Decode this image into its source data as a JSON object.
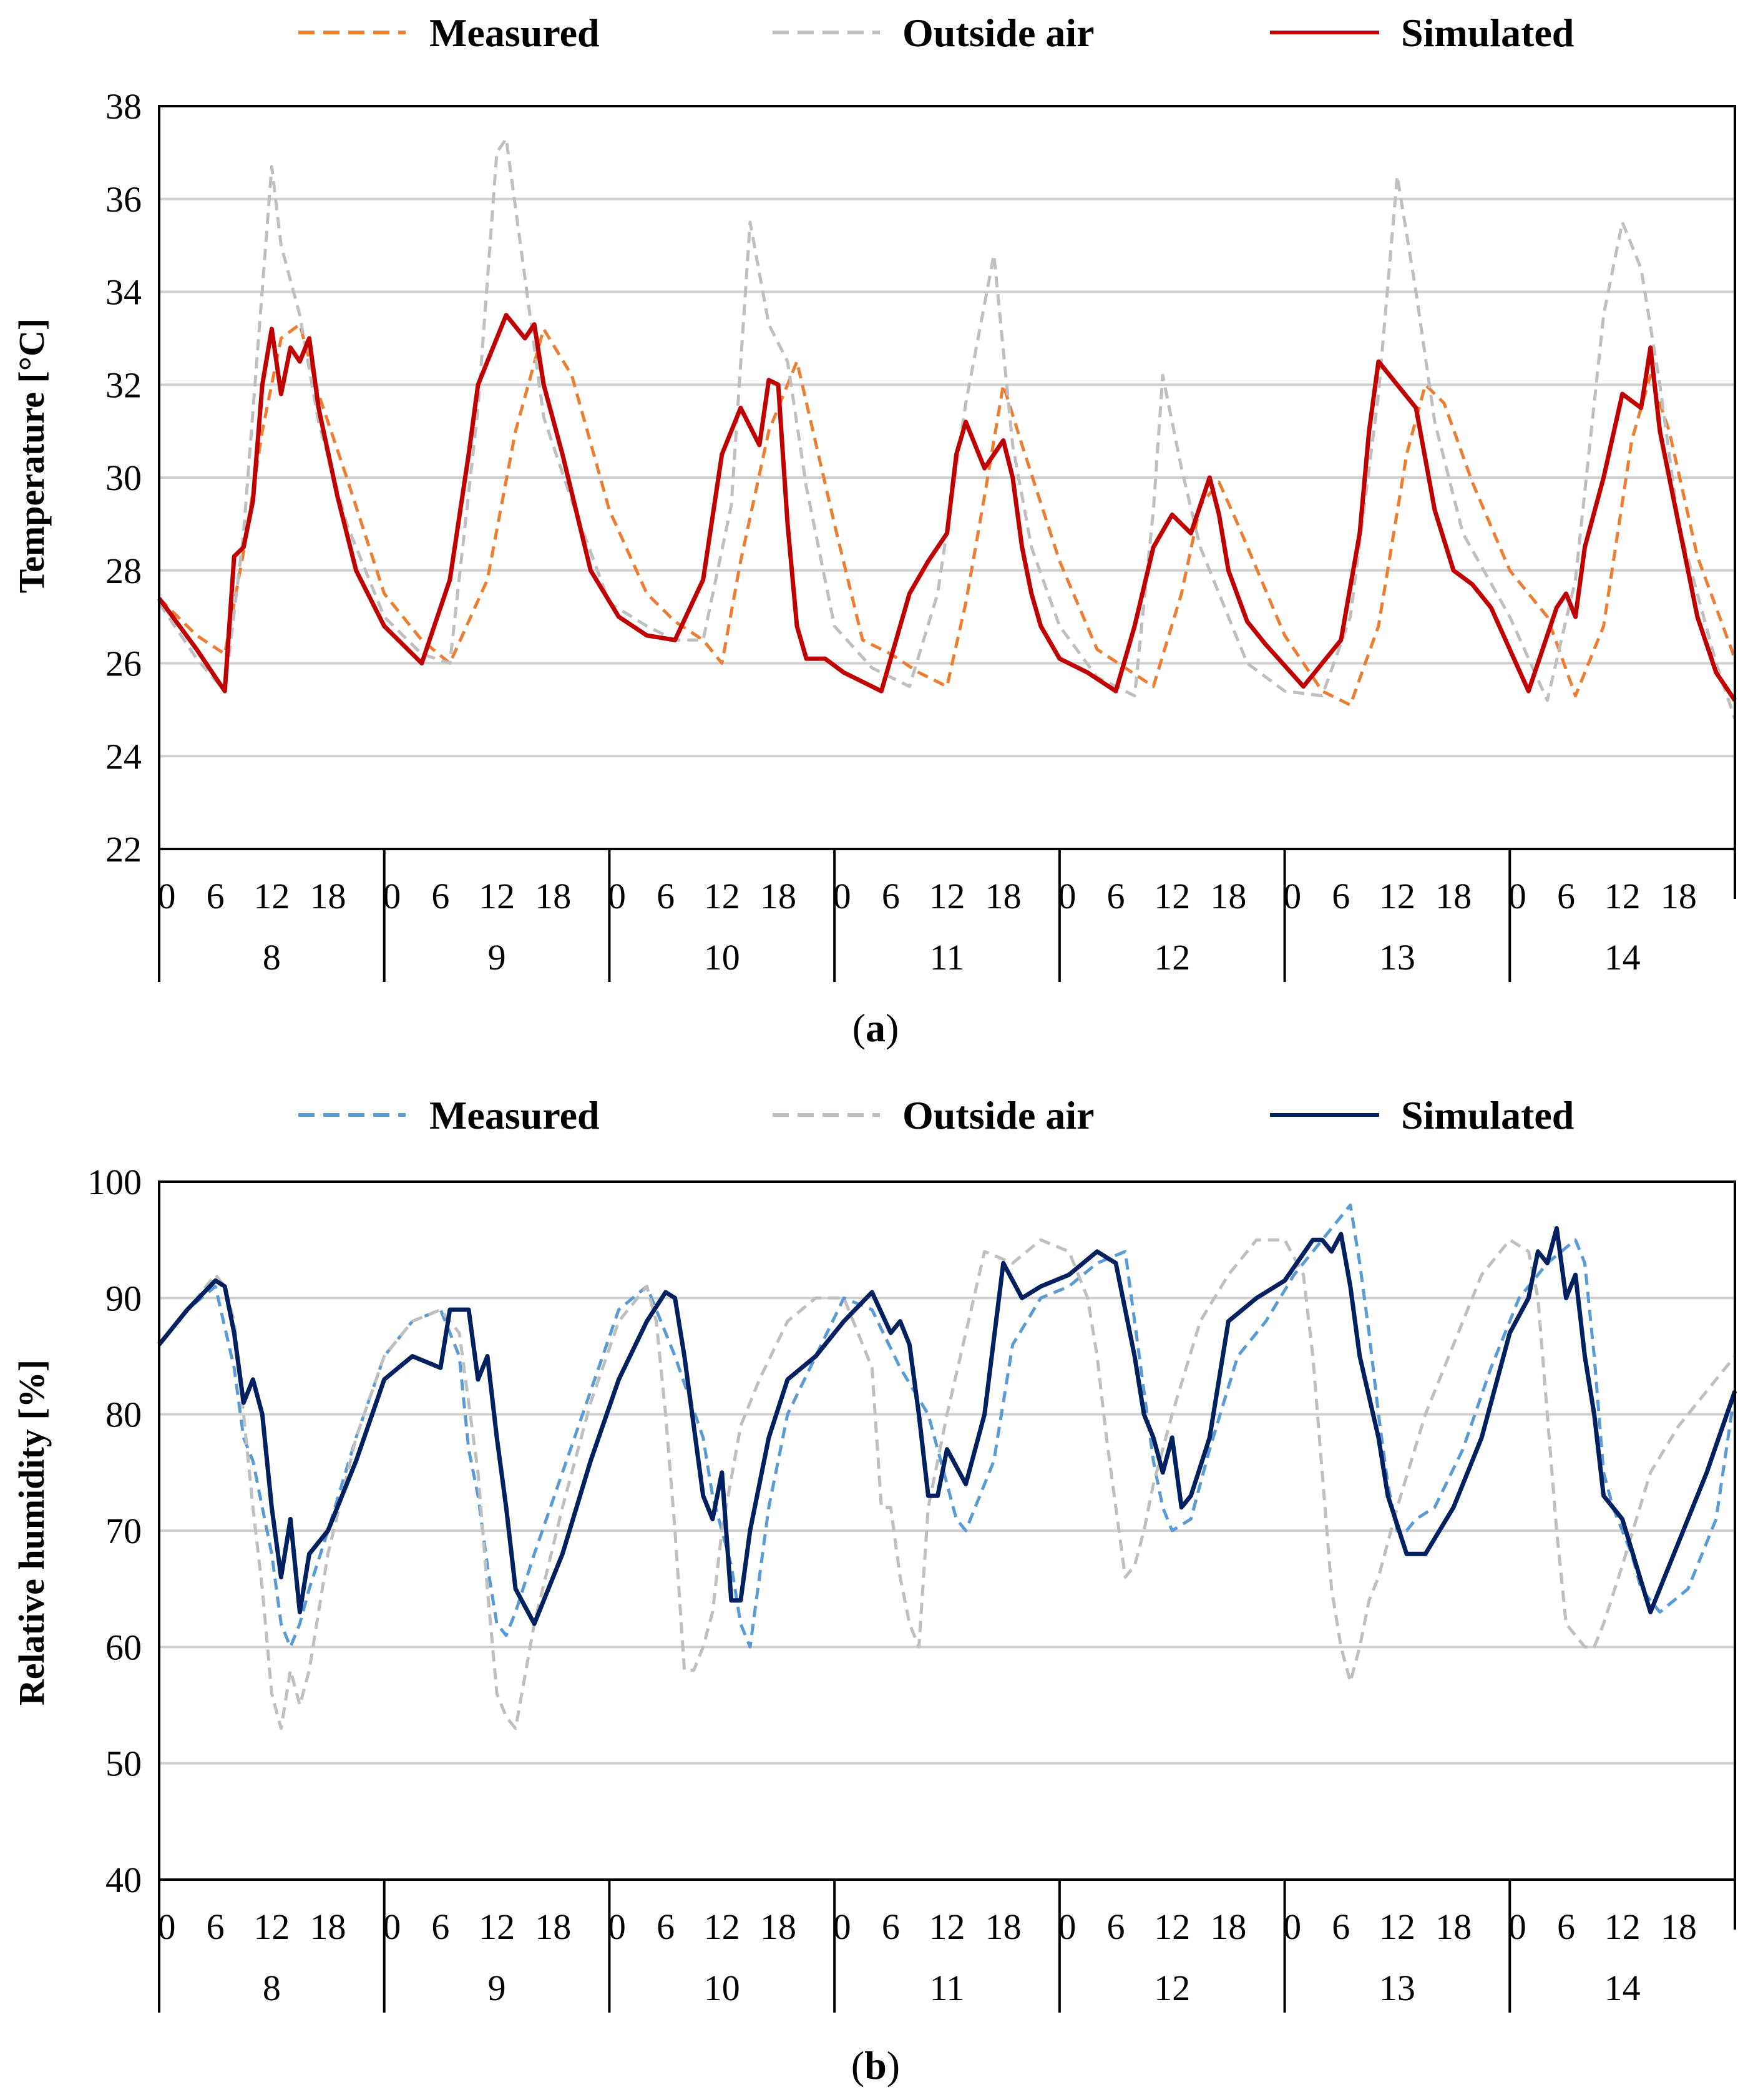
{
  "chart_data": [
    {
      "type": "line",
      "panel_label": "a",
      "ylabel": "Temperature [°C]",
      "ylim": [
        22,
        38
      ],
      "yticks": [
        22,
        24,
        26,
        28,
        30,
        32,
        34,
        36,
        38
      ],
      "xlabel": "",
      "days": [
        "8",
        "9",
        "10",
        "11",
        "12",
        "13",
        "14"
      ],
      "hour_ticks": [
        "0",
        "6",
        "12",
        "18"
      ],
      "x_unit": "hours since day 8 00:00",
      "legend_position": "top",
      "grid": true,
      "series": [
        {
          "name": "Measured",
          "color": "#ED7D31",
          "style": "dashed",
          "x": [
            0,
            4,
            7,
            9,
            11,
            13,
            15,
            17,
            20,
            24,
            28,
            31,
            35,
            38,
            41,
            44,
            48,
            52,
            55,
            58,
            60,
            62,
            65,
            68,
            72,
            75,
            78,
            81,
            84,
            86,
            88,
            90,
            92,
            96,
            100,
            103,
            106,
            109,
            111,
            113,
            115,
            120,
            124,
            127,
            130,
            133,
            135,
            137,
            140,
            144,
            148,
            151,
            154,
            157,
            159,
            161,
            164,
            168
          ],
          "values": [
            27.4,
            26.6,
            26.2,
            28.4,
            31.0,
            33.0,
            33.3,
            31.8,
            30.0,
            27.5,
            26.5,
            26.0,
            27.8,
            31.0,
            33.2,
            32.2,
            29.3,
            27.5,
            26.9,
            26.5,
            26.0,
            28.2,
            31.0,
            32.5,
            29.0,
            26.5,
            26.2,
            25.8,
            25.5,
            27.3,
            29.6,
            32.0,
            30.7,
            28.2,
            26.3,
            25.9,
            25.5,
            27.5,
            29.4,
            29.9,
            29.0,
            26.6,
            25.4,
            25.1,
            26.8,
            30.5,
            32.0,
            31.6,
            29.9,
            28.0,
            27.0,
            25.3,
            26.8,
            30.8,
            32.2,
            31.0,
            28.3,
            26.1
          ]
        },
        {
          "name": "Outside air",
          "color": "#BFBFBF",
          "style": "dashed",
          "x": [
            0,
            4,
            7,
            9,
            12,
            13,
            15,
            17,
            20,
            24,
            28,
            31,
            34,
            36,
            37,
            39,
            41,
            44,
            48,
            52,
            55,
            58,
            61,
            63,
            65,
            67,
            69,
            72,
            76,
            80,
            83,
            86,
            89,
            91,
            93,
            96,
            100,
            104,
            106,
            107,
            109,
            111,
            113,
            116,
            120,
            124,
            127,
            130,
            132,
            134,
            136,
            139,
            144,
            148,
            151,
            154,
            156,
            158,
            160,
            162,
            166,
            168
          ],
          "values": [
            27.3,
            26.1,
            25.4,
            28.8,
            36.7,
            35.0,
            33.5,
            31.2,
            29.0,
            27.0,
            26.2,
            26.0,
            31.5,
            37.0,
            37.3,
            34.3,
            31.3,
            29.5,
            27.3,
            26.8,
            26.5,
            26.5,
            29.4,
            35.5,
            33.3,
            32.5,
            29.8,
            26.8,
            25.9,
            25.5,
            27.5,
            31.6,
            34.8,
            30.7,
            28.5,
            26.8,
            25.7,
            25.3,
            29.3,
            32.2,
            30.2,
            28.5,
            27.5,
            26.0,
            25.4,
            25.3,
            27.0,
            31.8,
            36.5,
            34.0,
            31.2,
            28.8,
            27.0,
            25.2,
            27.8,
            33.5,
            35.5,
            34.5,
            32.0,
            29.0,
            26.0,
            24.8
          ]
        },
        {
          "name": "Simulated",
          "color": "#C00000",
          "style": "solid",
          "x": [
            0,
            4,
            7,
            8,
            9,
            10,
            11,
            12,
            13,
            14,
            15,
            16,
            17,
            19,
            21,
            24,
            28,
            31,
            33,
            34,
            35,
            37,
            39,
            40,
            41,
            43,
            46,
            49,
            52,
            55,
            58,
            60,
            62,
            64,
            65,
            66,
            67,
            68,
            69,
            71,
            73,
            77,
            80,
            82,
            84,
            85,
            86,
            88,
            90,
            91,
            92,
            93,
            94,
            96,
            99,
            102,
            104,
            106,
            108,
            110,
            112,
            113,
            114,
            116,
            118,
            122,
            126,
            128,
            129,
            130,
            132,
            134,
            136,
            138,
            140,
            142,
            146,
            149,
            150,
            151,
            152,
            154,
            156,
            158,
            159,
            160,
            162,
            164,
            166,
            168
          ],
          "values": [
            27.4,
            26.3,
            25.4,
            28.3,
            28.5,
            29.5,
            32.0,
            33.2,
            31.8,
            32.8,
            32.5,
            33.0,
            31.5,
            29.6,
            28.0,
            26.8,
            26.0,
            27.8,
            30.5,
            32.0,
            32.5,
            33.5,
            33.0,
            33.3,
            32.0,
            30.5,
            28.0,
            27.0,
            26.6,
            26.5,
            27.8,
            30.5,
            31.5,
            30.7,
            32.1,
            32.0,
            29.0,
            26.8,
            26.1,
            26.1,
            25.8,
            25.4,
            27.5,
            28.2,
            28.8,
            30.5,
            31.2,
            30.2,
            30.8,
            30.0,
            28.5,
            27.5,
            26.8,
            26.1,
            25.8,
            25.4,
            26.8,
            28.5,
            29.2,
            28.8,
            30.0,
            29.2,
            28.0,
            26.9,
            26.4,
            25.5,
            26.5,
            28.8,
            31.0,
            32.5,
            32.0,
            31.5,
            29.3,
            28.0,
            27.7,
            27.2,
            25.4,
            27.2,
            27.5,
            27.0,
            28.5,
            30.0,
            31.8,
            31.5,
            32.8,
            31.0,
            29.0,
            27.0,
            25.8,
            25.2
          ]
        }
      ]
    },
    {
      "type": "line",
      "panel_label": "b",
      "ylabel": "Relative humidity [%]",
      "ylim": [
        40,
        100
      ],
      "yticks": [
        40,
        50,
        60,
        70,
        80,
        90,
        100
      ],
      "xlabel": "",
      "days": [
        "8",
        "9",
        "10",
        "11",
        "12",
        "13",
        "14"
      ],
      "hour_ticks": [
        "0",
        "6",
        "12",
        "18"
      ],
      "x_unit": "hours since day 8 00:00",
      "legend_position": "top",
      "grid": true,
      "series": [
        {
          "name": "Measured",
          "color": "#5B9BD5",
          "style": "dashed",
          "x": [
            0,
            3,
            6,
            8,
            9,
            10,
            11,
            12,
            13,
            14,
            15,
            16,
            18,
            21,
            24,
            27,
            30,
            32,
            33,
            34,
            35,
            36,
            37,
            38,
            40,
            43,
            46,
            49,
            52,
            55,
            58,
            59,
            60,
            61,
            62,
            63,
            64,
            65,
            67,
            70,
            73,
            76,
            79,
            82,
            83,
            84,
            85,
            86,
            87,
            88,
            89,
            91,
            94,
            97,
            100,
            103,
            104,
            105,
            106,
            107,
            108,
            110,
            112,
            115,
            118,
            121,
            124,
            127,
            128,
            129,
            130,
            131,
            132,
            133,
            134,
            136,
            139,
            142,
            145,
            148,
            151,
            152,
            153,
            154,
            155,
            156,
            157,
            158,
            160,
            163,
            166,
            168
          ],
          "values": [
            86,
            89,
            91,
            84,
            78,
            76,
            72,
            68,
            62,
            60,
            62,
            65,
            70,
            78,
            85,
            88,
            89,
            85,
            77,
            73,
            67,
            62,
            61,
            63,
            68,
            75,
            82,
            89,
            91,
            85,
            78,
            73,
            70,
            67,
            62,
            60,
            66,
            72,
            80,
            85,
            90,
            89,
            84,
            80,
            77,
            74,
            71,
            70,
            72,
            74,
            76,
            86,
            90,
            91,
            93,
            94,
            88,
            82,
            76,
            72,
            70,
            71,
            77,
            85,
            88,
            92,
            95,
            98,
            93,
            87,
            80,
            74,
            70,
            70,
            71,
            72,
            77,
            84,
            90,
            93,
            95,
            93,
            85,
            75,
            72,
            70,
            68,
            65,
            63,
            65,
            71,
            82
          ]
        },
        {
          "name": "Outside air",
          "color": "#BFBFBF",
          "style": "dashed",
          "x": [
            0,
            3,
            6,
            7,
            8,
            9,
            10,
            11,
            12,
            13,
            14,
            15,
            16,
            18,
            21,
            24,
            27,
            30,
            32,
            34,
            35,
            36,
            37,
            38,
            40,
            43,
            46,
            49,
            52,
            53,
            54,
            55,
            56,
            57,
            58,
            59,
            60,
            62,
            64,
            67,
            70,
            73,
            76,
            77,
            78,
            79,
            80,
            81,
            82,
            83,
            84,
            86,
            88,
            91,
            94,
            97,
            99,
            100,
            101,
            102,
            103,
            104,
            105,
            106,
            108,
            111,
            114,
            117,
            120,
            122,
            123,
            124,
            125,
            126,
            127,
            128,
            129,
            130,
            132,
            135,
            138,
            141,
            144,
            146,
            147,
            148,
            149,
            150,
            151,
            152,
            153,
            154,
            156,
            159,
            162,
            165,
            168
          ],
          "values": [
            86,
            89,
            92,
            91,
            88,
            80,
            72,
            65,
            56,
            53,
            58,
            55,
            58,
            68,
            78,
            85,
            88,
            89,
            87,
            75,
            65,
            56,
            54,
            53,
            62,
            72,
            81,
            88,
            91,
            88,
            80,
            70,
            58,
            58,
            60,
            63,
            70,
            79,
            83,
            88,
            90,
            90,
            84,
            72,
            72,
            66,
            62,
            60,
            72,
            76,
            80,
            87,
            94,
            93,
            95,
            94,
            90,
            85,
            78,
            72,
            66,
            67,
            70,
            74,
            80,
            88,
            92,
            95,
            95,
            92,
            85,
            75,
            65,
            60,
            57,
            60,
            64,
            66,
            72,
            80,
            86,
            92,
            95,
            94,
            90,
            80,
            70,
            62,
            61,
            60,
            60,
            62,
            67,
            75,
            79,
            82,
            85
          ]
        },
        {
          "name": "Simulated",
          "color": "#002060",
          "style": "solid",
          "x": [
            0,
            3,
            6,
            7,
            8,
            9,
            10,
            11,
            12,
            13,
            14,
            15,
            16,
            18,
            21,
            24,
            27,
            30,
            31,
            33,
            34,
            35,
            36,
            37,
            38,
            40,
            43,
            46,
            49,
            52,
            54,
            55,
            56,
            58,
            59,
            60,
            61,
            62,
            63,
            65,
            67,
            70,
            73,
            76,
            78,
            79,
            80,
            81,
            82,
            83,
            84,
            86,
            88,
            90,
            92,
            94,
            97,
            100,
            102,
            104,
            105,
            106,
            107,
            108,
            109,
            110,
            112,
            114,
            117,
            120,
            123,
            124,
            125,
            126,
            127,
            128,
            130,
            131,
            133,
            135,
            138,
            141,
            144,
            146,
            147,
            148,
            149,
            150,
            151,
            152,
            153,
            154,
            156,
            159,
            162,
            165,
            168
          ],
          "values": [
            86,
            89,
            91.5,
            91,
            87,
            81,
            83,
            80,
            72,
            66,
            71,
            63,
            68,
            70,
            76,
            83,
            85,
            84,
            89,
            89,
            83,
            85,
            78,
            72,
            65,
            62,
            68,
            76,
            83,
            88,
            90.5,
            90,
            85,
            73,
            71,
            75,
            64,
            64,
            70,
            78,
            83,
            85,
            88,
            90.5,
            87,
            88,
            86,
            80,
            73,
            73,
            77,
            74,
            80,
            93,
            90,
            91,
            92,
            94,
            93,
            85,
            80,
            78,
            75,
            78,
            72,
            73,
            78,
            88,
            90,
            91.5,
            95,
            95,
            94,
            95.5,
            91,
            85,
            78,
            73,
            68,
            68,
            72,
            78,
            87,
            90,
            94,
            93,
            96,
            90,
            92,
            85,
            80,
            73,
            71,
            63,
            69,
            75,
            82
          ]
        }
      ]
    }
  ]
}
